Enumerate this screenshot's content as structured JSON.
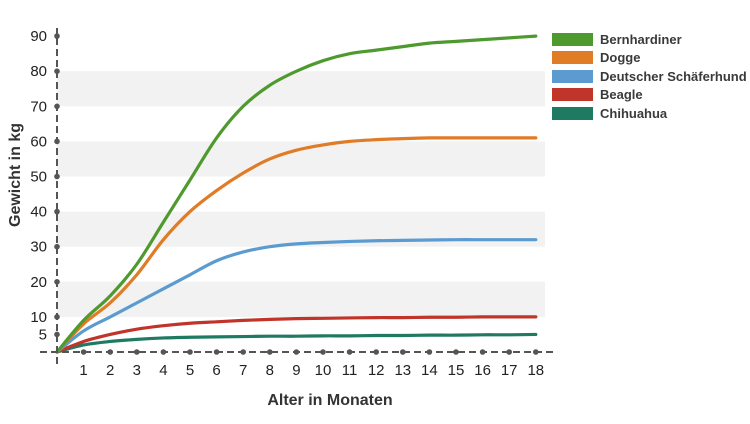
{
  "chart_data": {
    "type": "line",
    "title": "",
    "xlabel": "Alter in Monaten",
    "ylabel": "Gewicht in kg",
    "x_ticks": [
      "1",
      "2",
      "3",
      "4",
      "5",
      "6",
      "7",
      "8",
      "9",
      "10",
      "11",
      "12",
      "13",
      "14",
      "15",
      "16",
      "17",
      "18"
    ],
    "y_ticks": [
      "5",
      "10",
      "20",
      "30",
      "40",
      "50",
      "60",
      "70",
      "80",
      "90"
    ],
    "xlim": [
      0,
      18.3
    ],
    "ylim": [
      0,
      90
    ],
    "grid": "alternating horizontal bands",
    "legend_position": "top-right",
    "x": [
      0,
      1,
      2,
      3,
      4,
      5,
      6,
      7,
      8,
      9,
      10,
      11,
      12,
      13,
      14,
      15,
      16,
      17,
      18
    ],
    "series": [
      {
        "name": "Bernhardiner",
        "color": "#4e9a2e",
        "values": [
          0,
          9,
          16,
          25,
          37,
          49,
          61,
          70,
          76,
          80,
          83,
          85,
          86,
          87,
          88,
          88.5,
          89,
          89.5,
          90
        ]
      },
      {
        "name": "Dogge",
        "color": "#e07b26",
        "values": [
          0,
          8,
          14,
          22,
          32,
          40,
          46,
          51,
          55,
          57.5,
          59,
          60,
          60.5,
          60.8,
          61,
          61,
          61,
          61,
          61
        ]
      },
      {
        "name": "Deutscher Schäferhund",
        "color": "#5b9bd0",
        "values": [
          0,
          6,
          10,
          14,
          18,
          22,
          26,
          28.5,
          30,
          30.8,
          31.2,
          31.5,
          31.7,
          31.8,
          31.9,
          32,
          32,
          32,
          32
        ]
      },
      {
        "name": "Beagle",
        "color": "#c0342a",
        "values": [
          0,
          3,
          5,
          6.5,
          7.5,
          8.2,
          8.6,
          9,
          9.3,
          9.5,
          9.6,
          9.7,
          9.8,
          9.8,
          9.9,
          9.9,
          10,
          10,
          10
        ]
      },
      {
        "name": "Chihuahua",
        "color": "#1f7a62",
        "values": [
          0,
          2,
          3,
          3.6,
          4,
          4.2,
          4.3,
          4.4,
          4.5,
          4.5,
          4.6,
          4.6,
          4.7,
          4.7,
          4.8,
          4.8,
          4.9,
          4.9,
          5
        ]
      }
    ]
  }
}
